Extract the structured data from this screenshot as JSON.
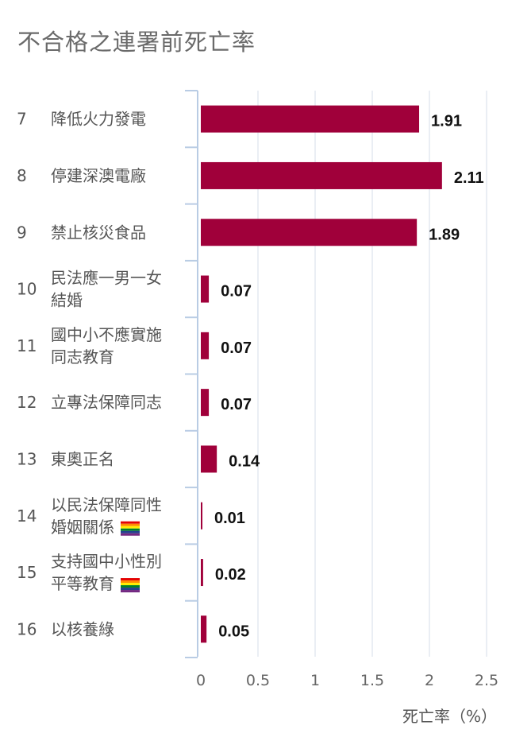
{
  "title": "不合格之連署前死亡率",
  "chart_data": {
    "type": "bar",
    "orientation": "horizontal",
    "title": "不合格之連署前死亡率",
    "xlabel": "死亡率（%）",
    "xlim": [
      0,
      2.5
    ],
    "xticks": [
      "0",
      "0.5",
      "1",
      "1.5",
      "2",
      "2.5"
    ],
    "grid": true,
    "bar_color": "#a0003a",
    "categories": [
      {
        "num": "7",
        "lines": [
          "降低火力發電"
        ],
        "value": 1.91,
        "label": "1.91",
        "icon": null
      },
      {
        "num": "8",
        "lines": [
          "停建深澳電廠"
        ],
        "value": 2.11,
        "label": "2.11",
        "icon": null
      },
      {
        "num": "9",
        "lines": [
          "禁止核災食品"
        ],
        "value": 1.89,
        "label": "1.89",
        "icon": null
      },
      {
        "num": "10",
        "lines": [
          "民法應一男一女",
          "結婚"
        ],
        "value": 0.07,
        "label": "0.07",
        "icon": null
      },
      {
        "num": "11",
        "lines": [
          "國中小不應實施",
          "同志教育"
        ],
        "value": 0.07,
        "label": "0.07",
        "icon": null
      },
      {
        "num": "12",
        "lines": [
          "立專法保障同志"
        ],
        "value": 0.07,
        "label": "0.07",
        "icon": null
      },
      {
        "num": "13",
        "lines": [
          "東奧正名"
        ],
        "value": 0.14,
        "label": "0.14",
        "icon": null
      },
      {
        "num": "14",
        "lines": [
          "以民法保障同性",
          "婚姻關係"
        ],
        "value": 0.01,
        "label": "0.01",
        "icon": "rainbow-flag-icon"
      },
      {
        "num": "15",
        "lines": [
          "支持國中小性別",
          "平等教育"
        ],
        "value": 0.02,
        "label": "0.02",
        "icon": "rainbow-flag-icon"
      },
      {
        "num": "16",
        "lines": [
          "以核養綠"
        ],
        "value": 0.05,
        "label": "0.05",
        "icon": null
      }
    ]
  }
}
